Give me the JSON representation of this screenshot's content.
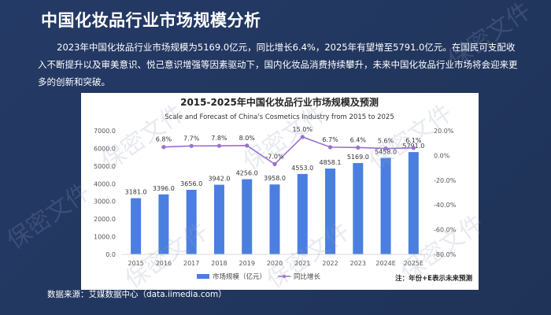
{
  "page": {
    "title": "中国化妆品行业市场规模分析",
    "paragraph": "2023年中国化妆品行业市场规模为5169.0亿元，同比增长6.4%，2025年有望增至5791.0亿元。在国民可支配收入不断提升以及审美意识、悦己意识增强等因素驱动下，国内化妆品消费持续攀升，未来中国化妆品行业市场将会迎来更多的创新和突破。",
    "source": "数据来源：艾媒数据中心（data.iimedia.com）",
    "watermark": "保密文件"
  },
  "colors": {
    "background": "#22375f",
    "bar": "#4a7fe0",
    "line": "#9b6fd0",
    "text_dark": "#333333",
    "axis_text": "#555555"
  },
  "chart_data": {
    "type": "bar",
    "title": "2015-2025年中国化妆品行业市场规模及预测",
    "subtitle": "Scale and Forecast of China's Cosmetics Industry from 2015 to 2025",
    "categories": [
      "2015",
      "2016",
      "2017",
      "2018",
      "2019",
      "2020",
      "2021",
      "2022",
      "2023",
      "2024E",
      "2025E"
    ],
    "series": [
      {
        "name": "市场规模（亿元）",
        "type": "bar",
        "axis": "left",
        "values": [
          3181.0,
          3396.0,
          3656.0,
          3942.0,
          4256.0,
          3958.0,
          4553.0,
          4858.1,
          5169.0,
          5458.0,
          5791.0
        ],
        "labels": [
          "3181.0",
          "3396.0",
          "3656.0",
          "3942.0",
          "4256.0",
          "3958.0",
          "4553.0",
          "4858.1",
          "5169.0",
          "5458.0",
          "5791.0"
        ]
      },
      {
        "name": "同比增长",
        "type": "line",
        "axis": "right",
        "values": [
          null,
          6.8,
          7.7,
          7.8,
          8.0,
          -7.0,
          15.0,
          6.7,
          6.4,
          5.6,
          6.1
        ],
        "labels": [
          "",
          "6.8%",
          "7.7%",
          "7.8%",
          "8.0%",
          "-7.0%",
          "15.0%",
          "6.7%",
          "6.4%",
          "5.6%",
          "6.1%"
        ]
      }
    ],
    "y_left": {
      "range": [
        0,
        7000
      ],
      "ticks": [
        0,
        1000,
        2000,
        3000,
        4000,
        5000,
        6000,
        7000
      ],
      "tick_labels": [
        "0.0",
        "1000.0",
        "2000.0",
        "3000.0",
        "4000.0",
        "5000.0",
        "6000.0",
        "7000.0"
      ]
    },
    "y_right": {
      "range": [
        -80,
        20
      ],
      "ticks": [
        -80,
        -60,
        -40,
        -20,
        0,
        20
      ],
      "tick_labels": [
        "-80.0%",
        "-60.0%",
        "-40.0%",
        "-20.0%",
        "0.0%",
        "20.0%"
      ]
    },
    "legend": {
      "position": "bottom",
      "items": [
        "市场规模（亿元）",
        "同比增长"
      ]
    },
    "note": "注：年份+E表示未来预测",
    "grid": false
  }
}
